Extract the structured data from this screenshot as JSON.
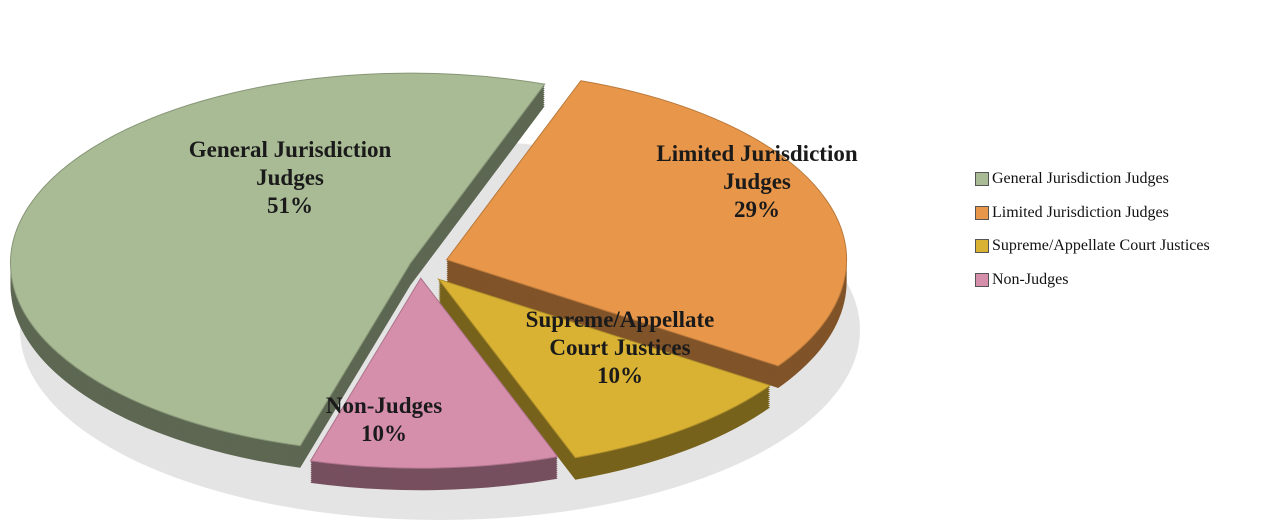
{
  "chart_data": {
    "type": "pie",
    "categories": [
      "General Jurisdiction Judges",
      "Limited Jurisdiction Judges",
      "Supreme/Appellate Court Justices",
      "Non-Judges"
    ],
    "values": [
      51,
      29,
      10,
      10
    ],
    "value_labels": [
      "51%",
      "29%",
      "10%",
      "10%"
    ],
    "colors": [
      "#a9bb95",
      "#e8974a",
      "#d9b233",
      "#d68fab"
    ],
    "legend": "right"
  }
}
